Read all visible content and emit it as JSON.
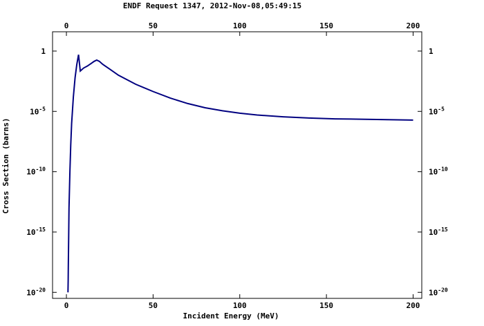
{
  "chart_data": {
    "type": "line",
    "title": "ENDF Request 1347, 2012-Nov-08,05:49:15",
    "xlabel": "Incident Energy (MeV)",
    "ylabel": "Cross Section (barns)",
    "yscale": "log",
    "xlim": [
      -8,
      205
    ],
    "ylim_log10": [
      -20.5,
      1.6
    ],
    "x_ticks": [
      0,
      50,
      100,
      150,
      200
    ],
    "x_tick_labels": [
      "0",
      "50",
      "100",
      "150",
      "200"
    ],
    "y_ticks_log10": [
      0,
      -5,
      -10,
      -15,
      -20
    ],
    "y_tick_labels": [
      {
        "base": "1",
        "exp": ""
      },
      {
        "base": "10",
        "exp": "-5"
      },
      {
        "base": "10",
        "exp": "-10"
      },
      {
        "base": "10",
        "exp": "-15"
      },
      {
        "base": "10",
        "exp": "-20"
      }
    ],
    "grid": false,
    "color": "#000080",
    "series": [
      {
        "x": [
          0.9,
          1.0,
          1.1,
          1.3,
          1.5,
          2.0,
          2.5,
          3.0,
          4.0,
          5.0,
          6.0,
          7.0,
          8.0,
          10.0,
          12.0,
          14.0,
          16.0,
          17.5,
          19.0,
          21.0,
          25.0,
          30.0,
          40.0,
          50.0,
          60.0,
          70.0,
          80.0,
          90.0,
          100.0,
          110.0,
          125.0,
          140.0,
          155.0,
          170.0,
          185.0,
          200.0
        ],
        "y_log10": [
          -20.0,
          -19.0,
          -17.8,
          -15.5,
          -13.0,
          -10.0,
          -7.8,
          -6.0,
          -3.8,
          -2.2,
          -1.1,
          -0.3,
          -1.65,
          -1.4,
          -1.25,
          -1.05,
          -0.85,
          -0.75,
          -0.85,
          -1.1,
          -1.5,
          -2.0,
          -2.75,
          -3.35,
          -3.9,
          -4.35,
          -4.7,
          -4.95,
          -5.15,
          -5.3,
          -5.45,
          -5.55,
          -5.62,
          -5.65,
          -5.68,
          -5.72
        ]
      }
    ]
  }
}
